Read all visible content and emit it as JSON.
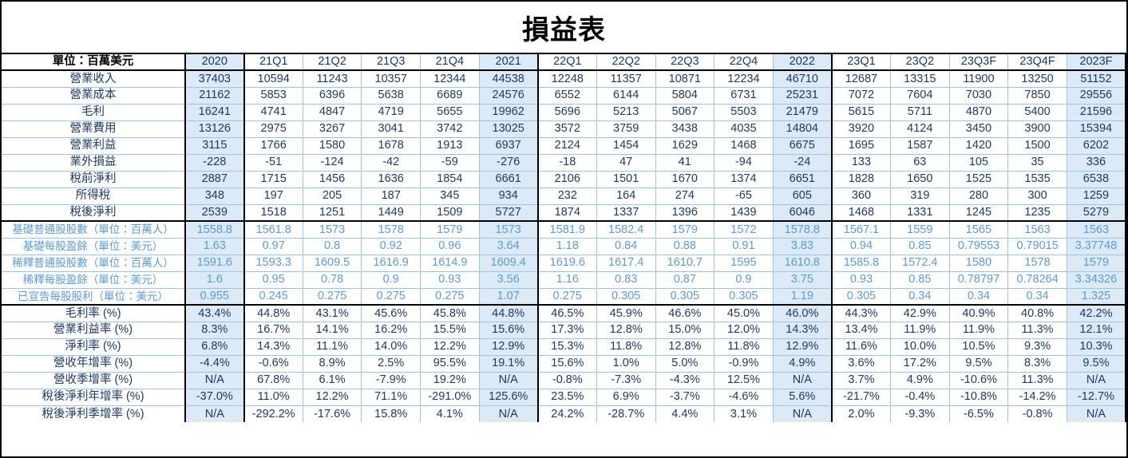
{
  "title": "損益表",
  "unit_label": "單位：百萬美元",
  "colors": {
    "text_dark": "#1F3864",
    "text_light_blue": "#5B9BD5",
    "annual_column_bg": "#DBEAF6",
    "thin_border": "#9DC3E6",
    "thick_border": "#000000"
  },
  "columns": [
    "2020",
    "21Q1",
    "21Q2",
    "21Q3",
    "21Q4",
    "2021",
    "22Q1",
    "22Q2",
    "22Q3",
    "22Q4",
    "2022",
    "23Q1",
    "23Q2",
    "23Q3F",
    "23Q4F",
    "2023F"
  ],
  "annual_column_indices": [
    0,
    5,
    10,
    15
  ],
  "chart_data": {
    "type": "table",
    "title": "損益表",
    "unit": "百萬美元",
    "categories": [
      "2020",
      "21Q1",
      "21Q2",
      "21Q3",
      "21Q4",
      "2021",
      "22Q1",
      "22Q2",
      "22Q3",
      "22Q4",
      "2022",
      "23Q1",
      "23Q2",
      "23Q3F",
      "23Q4F",
      "2023F"
    ]
  },
  "rows": [
    {
      "label": "營業收入",
      "section": "income",
      "values": [
        "37403",
        "10594",
        "11243",
        "10357",
        "12344",
        "44538",
        "12248",
        "11357",
        "10871",
        "12234",
        "46710",
        "12687",
        "13315",
        "11900",
        "13250",
        "51152"
      ]
    },
    {
      "label": "營業成本",
      "section": "income",
      "values": [
        "21162",
        "5853",
        "6396",
        "5638",
        "6689",
        "24576",
        "6552",
        "6144",
        "5804",
        "6731",
        "25231",
        "7072",
        "7604",
        "7030",
        "7850",
        "29556"
      ]
    },
    {
      "label": "毛利",
      "section": "income",
      "values": [
        "16241",
        "4741",
        "4847",
        "4719",
        "5655",
        "19962",
        "5696",
        "5213",
        "5067",
        "5503",
        "21479",
        "5615",
        "5711",
        "4870",
        "5400",
        "21596"
      ]
    },
    {
      "label": "營業費用",
      "section": "income",
      "values": [
        "13126",
        "2975",
        "3267",
        "3041",
        "3742",
        "13025",
        "3572",
        "3759",
        "3438",
        "4035",
        "14804",
        "3920",
        "4124",
        "3450",
        "3900",
        "15394"
      ]
    },
    {
      "label": "營業利益",
      "section": "income",
      "values": [
        "3115",
        "1766",
        "1580",
        "1678",
        "1913",
        "6937",
        "2124",
        "1454",
        "1629",
        "1468",
        "6675",
        "1695",
        "1587",
        "1420",
        "1500",
        "6202"
      ]
    },
    {
      "label": "業外損益",
      "section": "income",
      "values": [
        "-228",
        "-51",
        "-124",
        "-42",
        "-59",
        "-276",
        "-18",
        "47",
        "41",
        "-94",
        "-24",
        "133",
        "63",
        "105",
        "35",
        "336"
      ]
    },
    {
      "label": "稅前淨利",
      "section": "income",
      "values": [
        "2887",
        "1715",
        "1456",
        "1636",
        "1854",
        "6661",
        "2106",
        "1501",
        "1670",
        "1374",
        "6651",
        "1828",
        "1650",
        "1525",
        "1535",
        "6538"
      ]
    },
    {
      "label": "所得稅",
      "section": "income",
      "values": [
        "348",
        "197",
        "205",
        "187",
        "345",
        "934",
        "232",
        "164",
        "274",
        "-65",
        "605",
        "360",
        "319",
        "280",
        "300",
        "1259"
      ]
    },
    {
      "label": "稅後淨利",
      "section": "income",
      "section_end": true,
      "values": [
        "2539",
        "1518",
        "1251",
        "1449",
        "1509",
        "5727",
        "1874",
        "1337",
        "1396",
        "1439",
        "6046",
        "1468",
        "1331",
        "1245",
        "1235",
        "5279"
      ]
    },
    {
      "label": "基礎普通股股數（單位：百萬人）",
      "section": "pershare",
      "values": [
        "1558.8",
        "1561.8",
        "1573",
        "1578",
        "1579",
        "1573",
        "1581.9",
        "1582.4",
        "1579",
        "1572",
        "1578.8",
        "1567.1",
        "1559",
        "1565",
        "1563",
        "1563"
      ]
    },
    {
      "label": "基礎每股盈餘（單位：美元）",
      "section": "pershare",
      "values": [
        "1.63",
        "0.97",
        "0.8",
        "0.92",
        "0.96",
        "3.64",
        "1.18",
        "0.84",
        "0.88",
        "0.91",
        "3.83",
        "0.94",
        "0.85",
        "0.79553",
        "0.79015",
        "3.37748"
      ]
    },
    {
      "label": "稀釋普通股股數（單位：百萬人）",
      "section": "pershare",
      "values": [
        "1591.6",
        "1593.3",
        "1609.5",
        "1616.9",
        "1614.9",
        "1609.4",
        "1619.6",
        "1617.4",
        "1610.7",
        "1595",
        "1610.8",
        "1585.8",
        "1572.4",
        "1580",
        "1578",
        "1579"
      ]
    },
    {
      "label": "稀釋每股盈餘（單位：美元）",
      "section": "pershare",
      "values": [
        "1.6",
        "0.95",
        "0.78",
        "0.9",
        "0.93",
        "3.56",
        "1.16",
        "0.83",
        "0.87",
        "0.9",
        "3.75",
        "0.93",
        "0.85",
        "0.78797",
        "0.78264",
        "3.34326"
      ]
    },
    {
      "label": "已宣告每股股利（單位：美元）",
      "section": "pershare",
      "section_end": true,
      "values": [
        "0.955",
        "0.245",
        "0.275",
        "0.275",
        "0.275",
        "1.07",
        "0.275",
        "0.305",
        "0.305",
        "0.305",
        "1.19",
        "0.305",
        "0.34",
        "0.34",
        "0.34",
        "1.325"
      ]
    },
    {
      "label": "毛利率 (%)",
      "section": "ratios",
      "values": [
        "43.4%",
        "44.8%",
        "43.1%",
        "45.6%",
        "45.8%",
        "44.8%",
        "46.5%",
        "45.9%",
        "46.6%",
        "45.0%",
        "46.0%",
        "44.3%",
        "42.9%",
        "40.9%",
        "40.8%",
        "42.2%"
      ]
    },
    {
      "label": "營業利益率 (%)",
      "section": "ratios",
      "values": [
        "8.3%",
        "16.7%",
        "14.1%",
        "16.2%",
        "15.5%",
        "15.6%",
        "17.3%",
        "12.8%",
        "15.0%",
        "12.0%",
        "14.3%",
        "13.4%",
        "11.9%",
        "11.9%",
        "11.3%",
        "12.1%"
      ]
    },
    {
      "label": "淨利率 (%)",
      "section": "ratios",
      "values": [
        "6.8%",
        "14.3%",
        "11.1%",
        "14.0%",
        "12.2%",
        "12.9%",
        "15.3%",
        "11.8%",
        "12.8%",
        "11.8%",
        "12.9%",
        "11.6%",
        "10.0%",
        "10.5%",
        "9.3%",
        "10.3%"
      ]
    },
    {
      "label": "營收年增率 (%)",
      "section": "ratios",
      "values": [
        "-4.4%",
        "-0.6%",
        "8.9%",
        "2.5%",
        "95.5%",
        "19.1%",
        "15.6%",
        "1.0%",
        "5.0%",
        "-0.9%",
        "4.9%",
        "3.6%",
        "17.2%",
        "9.5%",
        "8.3%",
        "9.5%"
      ]
    },
    {
      "label": "營收季增率 (%)",
      "section": "ratios",
      "values": [
        "N/A",
        "67.8%",
        "6.1%",
        "-7.9%",
        "19.2%",
        "N/A",
        "-0.8%",
        "-7.3%",
        "-4.3%",
        "12.5%",
        "N/A",
        "3.7%",
        "4.9%",
        "-10.6%",
        "11.3%",
        "N/A"
      ]
    },
    {
      "label": "稅後淨利年增率 (%)",
      "section": "ratios",
      "values": [
        "-37.0%",
        "11.0%",
        "12.2%",
        "71.1%",
        "-291.0%",
        "125.6%",
        "23.5%",
        "6.9%",
        "-3.7%",
        "-4.6%",
        "5.6%",
        "-21.7%",
        "-0.4%",
        "-10.8%",
        "-14.2%",
        "-12.7%"
      ]
    },
    {
      "label": "稅後淨利季增率 (%)",
      "section": "ratios",
      "values": [
        "N/A",
        "-292.2%",
        "-17.6%",
        "15.8%",
        "4.1%",
        "N/A",
        "24.2%",
        "-28.7%",
        "4.4%",
        "3.1%",
        "N/A",
        "2.0%",
        "-9.3%",
        "-6.5%",
        "-0.8%",
        "N/A"
      ]
    }
  ]
}
